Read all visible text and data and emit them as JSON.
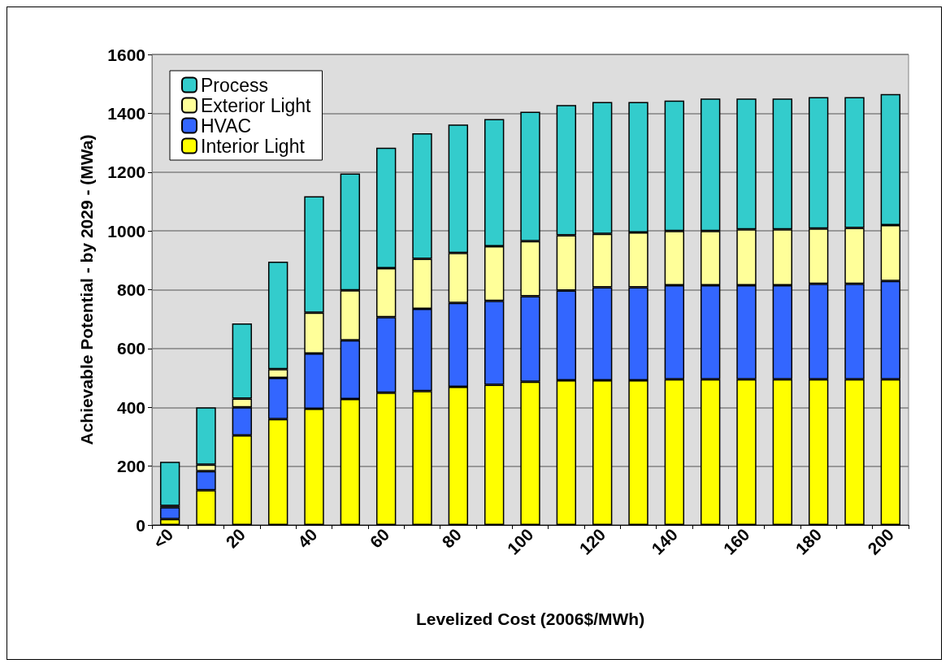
{
  "chart_data": {
    "type": "bar",
    "stacked": true,
    "xlabel": "Levelized Cost (2006$/MWh)",
    "ylabel": "Achievable Potential - by 2029 - (MWa)",
    "categories": [
      "<0",
      null,
      "20",
      null,
      "40",
      null,
      "60",
      null,
      "80",
      null,
      "100",
      null,
      "120",
      null,
      "140",
      null,
      "160",
      null,
      "180",
      null,
      "200"
    ],
    "series": [
      {
        "name": "Interior Light",
        "color": "#ffff00",
        "values": [
          20,
          118,
          305,
          360,
          395,
          428,
          450,
          455,
          470,
          477,
          487,
          492,
          492,
          492,
          495,
          495,
          495,
          495,
          495,
          495,
          495
        ]
      },
      {
        "name": "HVAC",
        "color": "#3366ff",
        "values": [
          40,
          65,
          95,
          140,
          188,
          200,
          257,
          280,
          285,
          285,
          291,
          305,
          316,
          316,
          320,
          320,
          320,
          320,
          325,
          325,
          335
        ]
      },
      {
        "name": "Exterior Light",
        "color": "#ffff99",
        "values": [
          5,
          22,
          30,
          30,
          139,
          170,
          166,
          170,
          170,
          186,
          187,
          188,
          182,
          187,
          185,
          185,
          190,
          190,
          188,
          190,
          190
        ]
      },
      {
        "name": "Process",
        "color": "#33cccc",
        "values": [
          150,
          195,
          255,
          365,
          396,
          397,
          410,
          427,
          437,
          432,
          440,
          443,
          448,
          443,
          443,
          450,
          445,
          445,
          447,
          445,
          445
        ]
      }
    ],
    "ylim": [
      0,
      1600
    ],
    "yticks": [
      0,
      200,
      400,
      600,
      800,
      1000,
      1200,
      1400,
      1600
    ],
    "grid": "y",
    "legend": "top left"
  }
}
